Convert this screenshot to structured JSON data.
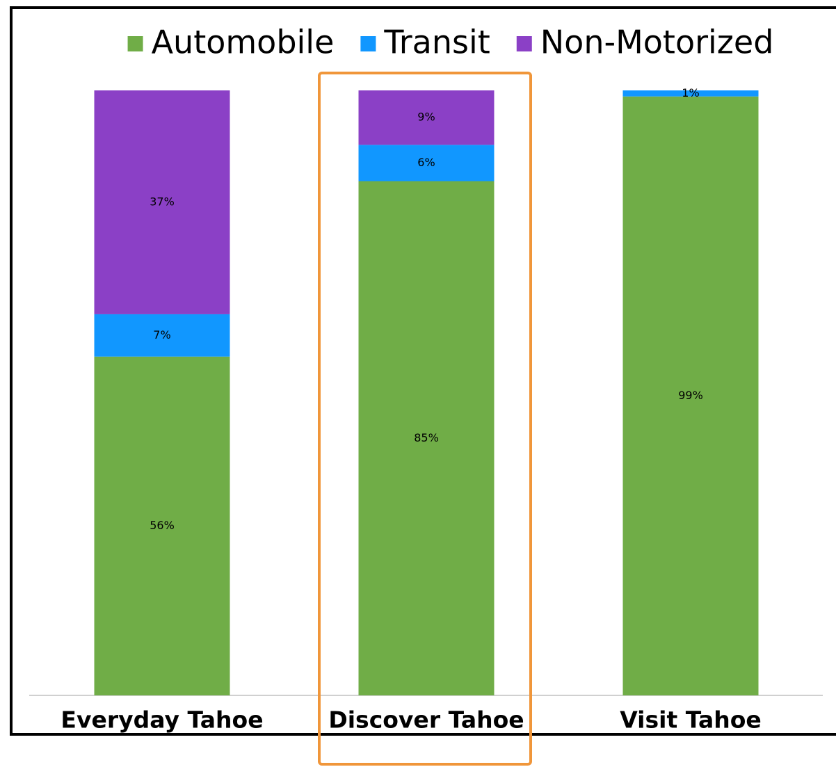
{
  "chart_data": {
    "type": "stacked_bar",
    "categories": [
      "Everyday Tahoe",
      "Discover Tahoe",
      "Visit Tahoe"
    ],
    "series": [
      {
        "name": "Automobile",
        "color": "#70ad47",
        "values": [
          56,
          85,
          99
        ],
        "value_labels": [
          "56%",
          "85%",
          "99%"
        ]
      },
      {
        "name": "Transit",
        "color": "#1197ff",
        "values": [
          7,
          6,
          1
        ],
        "value_labels": [
          "7%",
          "6%",
          "1%"
        ]
      },
      {
        "name": "Non-Motorized",
        "color": "#8b40c6",
        "values": [
          37,
          9,
          0
        ],
        "value_labels": [
          "37%",
          "9%",
          null
        ]
      }
    ],
    "legend": "top"
  }
}
